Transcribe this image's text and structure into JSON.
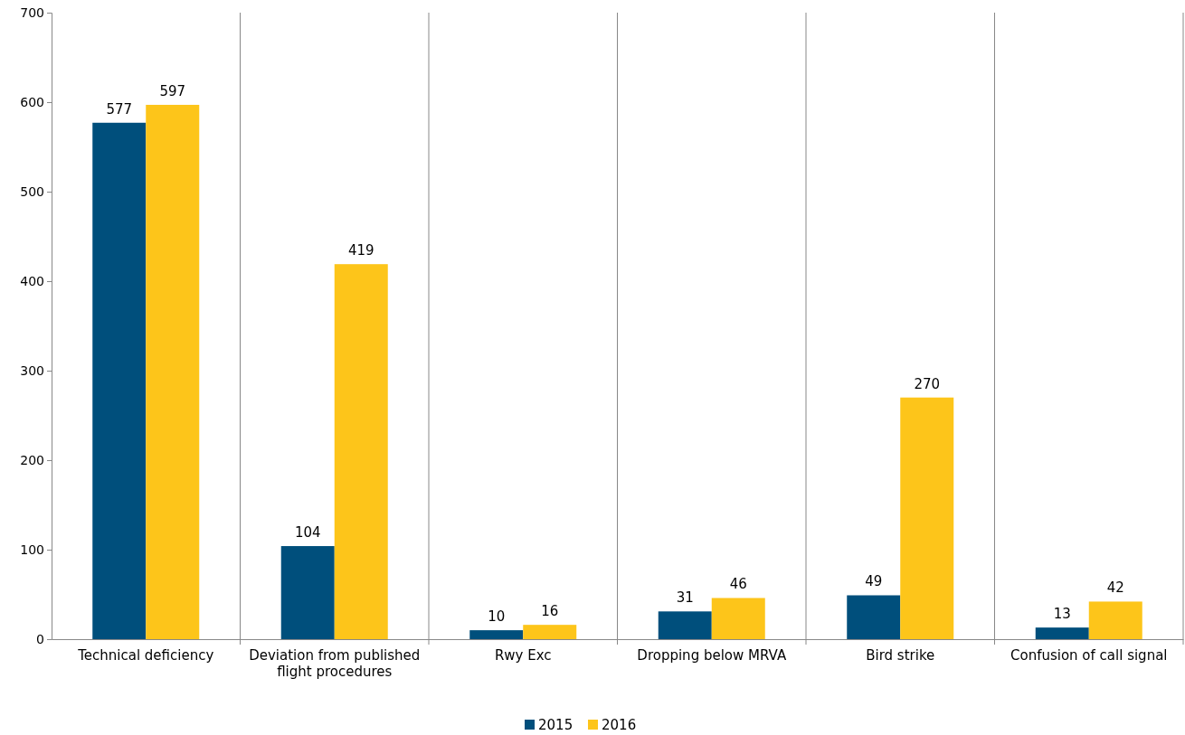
{
  "chart_data": {
    "type": "bar",
    "categories": [
      "Technical deficiency",
      "Deviation from published flight procedures",
      "Rwy Exc",
      "Dropping below MRVA",
      "Bird strike",
      "Confusion of call signal"
    ],
    "series": [
      {
        "name": "2015",
        "color": "#004f7c",
        "values": [
          577,
          104,
          10,
          31,
          49,
          13
        ]
      },
      {
        "name": "2016",
        "color": "#fdc51a",
        "values": [
          597,
          419,
          16,
          46,
          270,
          42
        ]
      }
    ],
    "ylim": [
      0,
      700
    ],
    "yticks": [
      0,
      100,
      200,
      300,
      400,
      500,
      600,
      700
    ],
    "grid": "x",
    "legend": "bottom",
    "data_labels": true
  }
}
